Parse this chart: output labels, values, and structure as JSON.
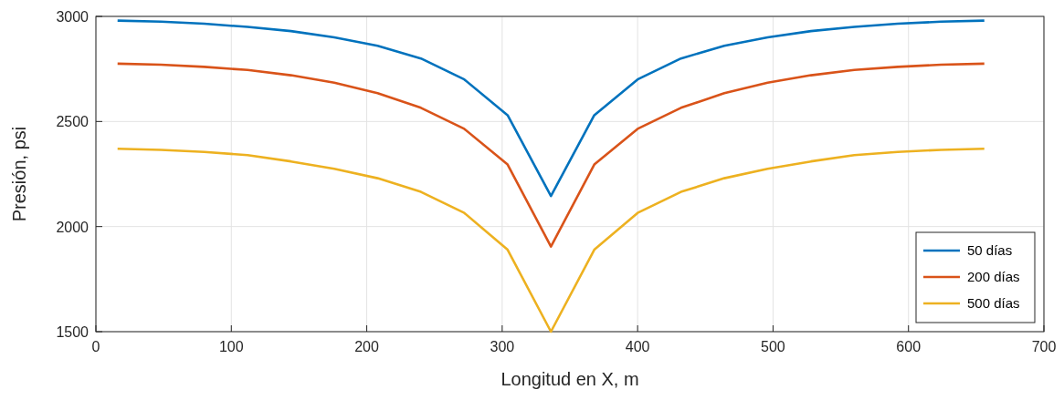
{
  "chart_data": {
    "type": "line",
    "xlabel": "Longitud en X, m",
    "ylabel": "Presión, psi",
    "x": [
      16,
      48,
      80,
      112,
      144,
      176,
      208,
      240,
      272,
      304,
      336,
      368,
      400,
      432,
      464,
      496,
      528,
      560,
      592,
      624,
      656
    ],
    "series": [
      {
        "name": "50 días",
        "color": "#0072bd",
        "values": [
          2980,
          2975,
          2965,
          2950,
          2930,
          2900,
          2860,
          2800,
          2700,
          2530,
          2145,
          2530,
          2700,
          2800,
          2860,
          2900,
          2930,
          2950,
          2965,
          2975,
          2980
        ]
      },
      {
        "name": "200 días",
        "color": "#d95319",
        "values": [
          2775,
          2770,
          2760,
          2745,
          2720,
          2685,
          2635,
          2565,
          2465,
          2295,
          1905,
          2295,
          2465,
          2565,
          2635,
          2685,
          2720,
          2745,
          2760,
          2770,
          2775
        ]
      },
      {
        "name": "500 días",
        "color": "#edb120",
        "values": [
          2370,
          2365,
          2355,
          2340,
          2310,
          2275,
          2230,
          2165,
          2065,
          1890,
          1500,
          1890,
          2065,
          2165,
          2230,
          2275,
          2310,
          2340,
          2355,
          2365,
          2370
        ]
      }
    ],
    "xlim": [
      0,
      700
    ],
    "xticks": [
      0,
      100,
      200,
      300,
      400,
      500,
      600,
      700
    ],
    "ylim": [
      1500,
      3000
    ],
    "yticks": [
      1500,
      2000,
      2500,
      3000
    ],
    "grid": true,
    "legend": "bottom right",
    "marker": "none",
    "line_style": "solid"
  }
}
